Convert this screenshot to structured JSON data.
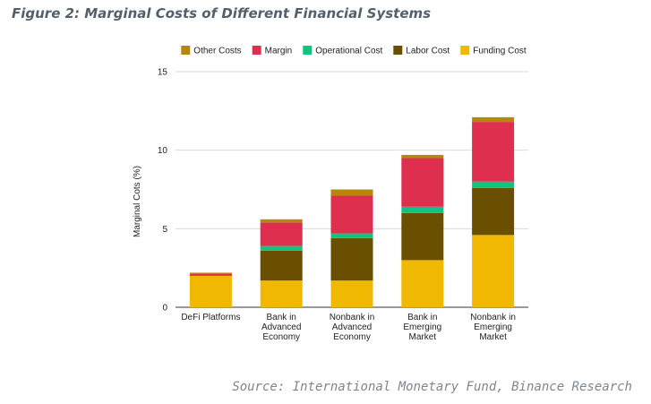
{
  "figure_title": "Figure 2: Marginal Costs of Different Financial Systems",
  "source": "Source: International Monetary Fund, Binance Research",
  "chart_data": {
    "type": "bar",
    "stacked": true,
    "title": "Figure 2: Marginal Costs of Different Financial Systems",
    "xlabel": "",
    "ylabel": "Marginal Cots (%)",
    "ylim": [
      0,
      15
    ],
    "yticks": [
      0,
      5,
      10,
      15
    ],
    "grid": true,
    "legend_position": "top",
    "categories": [
      [
        "DeFi Platforms"
      ],
      [
        "Bank in",
        "Advanced",
        "Economy"
      ],
      [
        "Nonbank in",
        "Advanced",
        "Economy"
      ],
      [
        "Bank in",
        "Emerging",
        "Market"
      ],
      [
        "Nonbank in",
        "Emerging",
        "Market"
      ]
    ],
    "series": [
      {
        "name": "Funding Cost",
        "color": "#f0b800",
        "values": [
          2.0,
          1.7,
          1.7,
          3.0,
          4.6
        ]
      },
      {
        "name": "Labor Cost",
        "color": "#6b4f00",
        "values": [
          0.0,
          1.9,
          2.7,
          3.0,
          3.0
        ]
      },
      {
        "name": "Operational Cost",
        "color": "#10c480",
        "values": [
          0.0,
          0.3,
          0.3,
          0.4,
          0.4
        ]
      },
      {
        "name": "Margin",
        "color": "#df2f4f",
        "values": [
          0.15,
          1.5,
          2.4,
          3.1,
          3.8
        ]
      },
      {
        "name": "Other Costs",
        "color": "#b8860b",
        "values": [
          0.05,
          0.2,
          0.4,
          0.2,
          0.3
        ]
      }
    ],
    "legend_order": [
      "Other Costs",
      "Margin",
      "Operational Cost",
      "Labor Cost",
      "Funding Cost"
    ]
  }
}
